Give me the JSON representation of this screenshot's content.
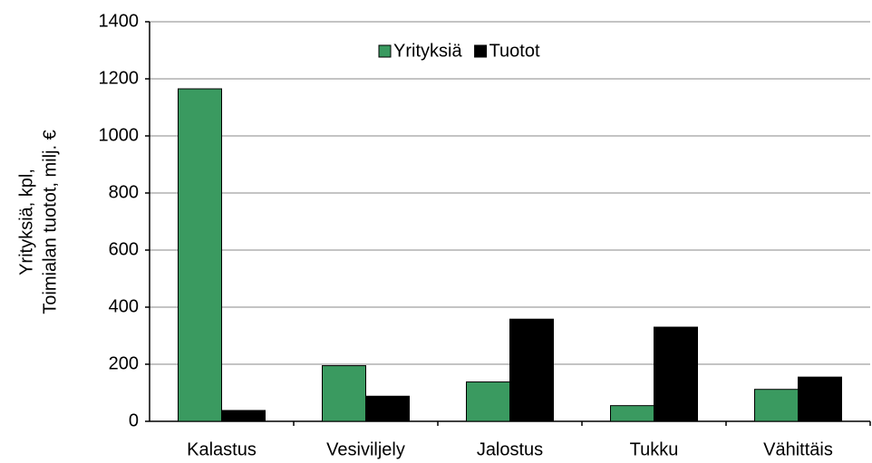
{
  "chart_data": {
    "type": "bar",
    "ylabel": [
      "Yrityksiä, kpl,",
      "Toimialan tuotot,  milj. €"
    ],
    "categories": [
      "Kalastus",
      "Vesiviljely",
      "Jalostus",
      "Tukku",
      "Vähittäis"
    ],
    "series": [
      {
        "name": "Yrityksiä",
        "color": "#3a9a60",
        "values": [
          1165,
          195,
          138,
          55,
          112
        ]
      },
      {
        "name": "Tuotot",
        "color": "#000000",
        "values": [
          38,
          88,
          358,
          330,
          155
        ]
      }
    ],
    "ylim": [
      0,
      1400
    ],
    "yticks": [
      0,
      200,
      400,
      600,
      800,
      1000,
      1200,
      1400
    ],
    "grid": true,
    "legend": "top"
  }
}
